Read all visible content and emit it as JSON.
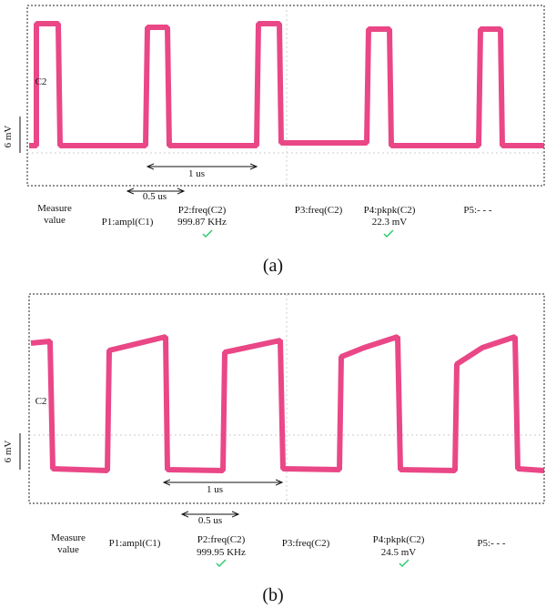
{
  "panels": [
    {
      "channel": "C2",
      "scale": "6 mV",
      "span_long": "1 us",
      "span_short": "0.5 us",
      "measure_label": [
        "Measure",
        "value"
      ],
      "p1": "P1:ampl(C1)",
      "p2": "P2:freq(C2)",
      "p2_value": "999.87 KHz",
      "p3": "P3:freq(C2)",
      "p4": "P4:pkpk(C2)",
      "p4_value": "22.3 mV",
      "p5": "P5:- - -",
      "caption": "(a)"
    },
    {
      "channel": "C2",
      "scale": "6 mV",
      "span_long": "1 us",
      "span_short": "0.5 us",
      "measure_label": [
        "Measure",
        "value"
      ],
      "p1": "P1:ampl(C1)",
      "p2": "P2:freq(C2)",
      "p2_value": "999.95 KHz",
      "p3": "P3:freq(C2)",
      "p4": "P4:pkpk(C2)",
      "p4_value": "24.5 mV",
      "p5": "P5:- - -",
      "caption": "(b)"
    }
  ]
}
